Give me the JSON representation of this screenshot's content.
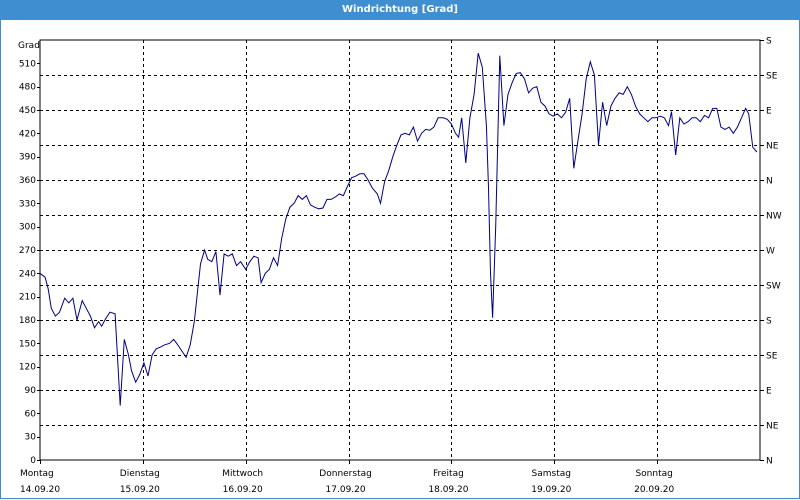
{
  "window": {
    "title": "Windrichtung [Grad]"
  },
  "colors": {
    "title_bar": "#3f8fd0",
    "line": "#00008b",
    "grid": "#000000"
  },
  "chart_data": {
    "type": "line",
    "title": "Windrichtung [Grad]",
    "ylabel": "Grad",
    "ylim": [
      0,
      540
    ],
    "yticks": [
      0,
      30,
      60,
      90,
      120,
      150,
      180,
      210,
      240,
      270,
      300,
      330,
      360,
      390,
      420,
      450,
      480,
      510
    ],
    "right_ticks": [
      {
        "value": 0,
        "label": "N"
      },
      {
        "value": 45,
        "label": "NE"
      },
      {
        "value": 90,
        "label": "E"
      },
      {
        "value": 135,
        "label": "SE"
      },
      {
        "value": 180,
        "label": "S"
      },
      {
        "value": 225,
        "label": "SW"
      },
      {
        "value": 270,
        "label": "W"
      },
      {
        "value": 315,
        "label": "NW"
      },
      {
        "value": 360,
        "label": "N"
      },
      {
        "value": 405,
        "label": "NE"
      },
      {
        "value": 450,
        "label": "E"
      },
      {
        "value": 495,
        "label": "SE"
      },
      {
        "value": 540,
        "label": "S"
      }
    ],
    "xlim": [
      0,
      7
    ],
    "xticks": [
      {
        "day": "Montag",
        "date": "14.09.20"
      },
      {
        "day": "Dienstag",
        "date": "15.09.20"
      },
      {
        "day": "Mittwoch",
        "date": "16.09.20"
      },
      {
        "day": "Donnerstag",
        "date": "17.09.20"
      },
      {
        "day": "Freitag",
        "date": "18.09.20"
      },
      {
        "day": "Samstag",
        "date": "19.09.20"
      },
      {
        "day": "Sonntag",
        "date": "20.09.20"
      }
    ],
    "grid": true,
    "series": [
      {
        "points": [
          [
            0.0,
            240
          ],
          [
            0.05,
            235
          ],
          [
            0.08,
            220
          ],
          [
            0.11,
            195
          ],
          [
            0.15,
            185
          ],
          [
            0.19,
            190
          ],
          [
            0.24,
            208
          ],
          [
            0.28,
            202
          ],
          [
            0.32,
            208
          ],
          [
            0.36,
            180
          ],
          [
            0.41,
            205
          ],
          [
            0.45,
            195
          ],
          [
            0.49,
            185
          ],
          [
            0.53,
            170
          ],
          [
            0.57,
            178
          ],
          [
            0.6,
            172
          ],
          [
            0.64,
            182
          ],
          [
            0.68,
            190
          ],
          [
            0.73,
            188
          ],
          [
            0.78,
            70
          ],
          [
            0.82,
            155
          ],
          [
            0.86,
            135
          ],
          [
            0.89,
            115
          ],
          [
            0.93,
            100
          ],
          [
            0.97,
            110
          ],
          [
            1.01,
            125
          ],
          [
            1.05,
            108
          ],
          [
            1.09,
            135
          ],
          [
            1.13,
            143
          ],
          [
            1.17,
            145
          ],
          [
            1.21,
            148
          ],
          [
            1.26,
            150
          ],
          [
            1.3,
            155
          ],
          [
            1.34,
            148
          ],
          [
            1.38,
            140
          ],
          [
            1.42,
            132
          ],
          [
            1.46,
            148
          ],
          [
            1.5,
            178
          ],
          [
            1.53,
            215
          ],
          [
            1.56,
            252
          ],
          [
            1.6,
            270
          ],
          [
            1.63,
            258
          ],
          [
            1.67,
            255
          ],
          [
            1.71,
            268
          ],
          [
            1.75,
            212
          ],
          [
            1.79,
            265
          ],
          [
            1.83,
            262
          ],
          [
            1.87,
            265
          ],
          [
            1.91,
            250
          ],
          [
            1.95,
            255
          ],
          [
            2.0,
            245
          ],
          [
            2.04,
            255
          ],
          [
            2.08,
            262
          ],
          [
            2.12,
            260
          ],
          [
            2.15,
            228
          ],
          [
            2.19,
            240
          ],
          [
            2.23,
            245
          ],
          [
            2.27,
            260
          ],
          [
            2.31,
            250
          ],
          [
            2.35,
            285
          ],
          [
            2.39,
            310
          ],
          [
            2.43,
            325
          ],
          [
            2.47,
            330
          ],
          [
            2.51,
            340
          ],
          [
            2.55,
            335
          ],
          [
            2.59,
            340
          ],
          [
            2.63,
            328
          ],
          [
            2.67,
            325
          ],
          [
            2.71,
            323
          ],
          [
            2.75,
            324
          ],
          [
            2.79,
            335
          ],
          [
            2.83,
            335
          ],
          [
            2.87,
            338
          ],
          [
            2.91,
            342
          ],
          [
            2.95,
            340
          ],
          [
            2.99,
            352
          ],
          [
            3.03,
            363
          ],
          [
            3.07,
            365
          ],
          [
            3.11,
            368
          ],
          [
            3.15,
            368
          ],
          [
            3.19,
            360
          ],
          [
            3.23,
            350
          ],
          [
            3.28,
            342
          ],
          [
            3.31,
            330
          ],
          [
            3.35,
            358
          ],
          [
            3.39,
            372
          ],
          [
            3.43,
            390
          ],
          [
            3.47,
            405
          ],
          [
            3.51,
            418
          ],
          [
            3.55,
            420
          ],
          [
            3.59,
            418
          ],
          [
            3.63,
            428
          ],
          [
            3.67,
            410
          ],
          [
            3.71,
            420
          ],
          [
            3.75,
            425
          ],
          [
            3.79,
            424
          ],
          [
            3.83,
            428
          ],
          [
            3.87,
            440
          ],
          [
            3.92,
            440
          ],
          [
            3.96,
            438
          ],
          [
            4.0,
            432
          ],
          [
            4.04,
            420
          ],
          [
            4.07,
            415
          ],
          [
            4.1,
            440
          ],
          [
            4.14,
            382
          ],
          [
            4.18,
            440
          ],
          [
            4.22,
            470
          ],
          [
            4.26,
            523
          ],
          [
            4.3,
            505
          ],
          [
            4.34,
            430
          ],
          [
            4.36,
            350
          ],
          [
            4.38,
            240
          ],
          [
            4.4,
            183
          ],
          [
            4.43,
            300
          ],
          [
            4.47,
            520
          ],
          [
            4.51,
            430
          ],
          [
            4.55,
            470
          ],
          [
            4.59,
            485
          ],
          [
            4.63,
            497
          ],
          [
            4.67,
            498
          ],
          [
            4.71,
            490
          ],
          [
            4.75,
            472
          ],
          [
            4.79,
            478
          ],
          [
            4.83,
            480
          ],
          [
            4.87,
            460
          ],
          [
            4.91,
            455
          ],
          [
            4.95,
            445
          ],
          [
            4.99,
            442
          ],
          [
            5.03,
            445
          ],
          [
            5.07,
            440
          ],
          [
            5.11,
            447
          ],
          [
            5.15,
            465
          ],
          [
            5.19,
            375
          ],
          [
            5.23,
            410
          ],
          [
            5.27,
            445
          ],
          [
            5.31,
            490
          ],
          [
            5.35,
            512
          ],
          [
            5.39,
            495
          ],
          [
            5.43,
            405
          ],
          [
            5.47,
            460
          ],
          [
            5.51,
            430
          ],
          [
            5.55,
            455
          ],
          [
            5.59,
            465
          ],
          [
            5.63,
            472
          ],
          [
            5.67,
            470
          ],
          [
            5.71,
            480
          ],
          [
            5.75,
            470
          ],
          [
            5.79,
            455
          ],
          [
            5.83,
            445
          ],
          [
            5.87,
            440
          ],
          [
            5.91,
            435
          ],
          [
            5.95,
            440
          ],
          [
            5.99,
            440
          ],
          [
            6.03,
            442
          ],
          [
            6.07,
            440
          ],
          [
            6.11,
            430
          ],
          [
            6.14,
            448
          ],
          [
            6.18,
            392
          ],
          [
            6.22,
            440
          ],
          [
            6.26,
            432
          ],
          [
            6.3,
            435
          ],
          [
            6.34,
            440
          ],
          [
            6.38,
            440
          ],
          [
            6.42,
            435
          ],
          [
            6.46,
            443
          ],
          [
            6.5,
            440
          ],
          [
            6.54,
            452
          ],
          [
            6.58,
            452
          ],
          [
            6.62,
            428
          ],
          [
            6.66,
            425
          ],
          [
            6.7,
            428
          ],
          [
            6.74,
            420
          ],
          [
            6.78,
            428
          ],
          [
            6.82,
            440
          ],
          [
            6.86,
            452
          ],
          [
            6.89,
            445
          ],
          [
            6.93,
            402
          ],
          [
            6.97,
            396
          ]
        ]
      }
    ]
  }
}
